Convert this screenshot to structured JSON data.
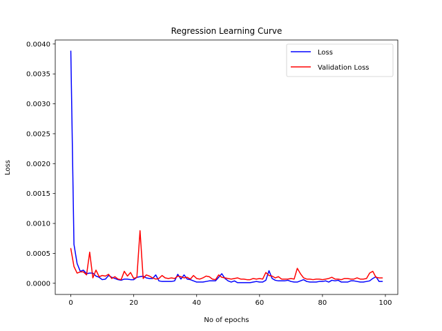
{
  "chart_data": {
    "type": "line",
    "title": "Regression Learning Curve",
    "xlabel": "No of epochs",
    "ylabel": "Loss",
    "xlim": [
      -4.95,
      103.95
    ],
    "ylim": [
      -0.000187,
      0.004067
    ],
    "xticks": [
      0,
      20,
      40,
      60,
      80,
      100
    ],
    "xtick_labels": [
      "0",
      "20",
      "40",
      "60",
      "80",
      "100"
    ],
    "yticks": [
      0.0,
      0.0005,
      0.001,
      0.0015,
      0.002,
      0.0025,
      0.003,
      0.0035,
      0.004
    ],
    "ytick_labels": [
      "0.0000",
      "0.0005",
      "0.0010",
      "0.0015",
      "0.0020",
      "0.0025",
      "0.0030",
      "0.0035",
      "0.0040"
    ],
    "grid": false,
    "legend_position": "top-right",
    "x": [
      0,
      1,
      2,
      3,
      4,
      5,
      6,
      7,
      8,
      9,
      10,
      11,
      12,
      13,
      14,
      15,
      16,
      17,
      18,
      19,
      20,
      21,
      22,
      23,
      24,
      25,
      26,
      27,
      28,
      29,
      30,
      31,
      32,
      33,
      34,
      35,
      36,
      37,
      38,
      39,
      40,
      41,
      42,
      43,
      44,
      45,
      46,
      47,
      48,
      49,
      50,
      51,
      52,
      53,
      54,
      55,
      56,
      57,
      58,
      59,
      60,
      61,
      62,
      63,
      64,
      65,
      66,
      67,
      68,
      69,
      70,
      71,
      72,
      73,
      74,
      75,
      76,
      77,
      78,
      79,
      80,
      81,
      82,
      83,
      84,
      85,
      86,
      87,
      88,
      89,
      90,
      91,
      92,
      93,
      94,
      95,
      96,
      97,
      98,
      99
    ],
    "series": [
      {
        "name": "Loss",
        "color": "#0000ff",
        "values": [
          0.00388,
          0.00065,
          0.00033,
          0.0002,
          0.00022,
          0.00016,
          0.00017,
          0.00017,
          0.00012,
          0.0001,
          6e-05,
          7e-05,
          0.00013,
          0.0001,
          8e-05,
          6e-05,
          5e-05,
          7e-05,
          7e-05,
          6e-05,
          6e-05,
          0.0001,
          0.00011,
          0.00012,
          9e-05,
          8e-05,
          8e-05,
          0.00014,
          4e-05,
          3e-05,
          3e-05,
          3e-05,
          3e-05,
          4e-05,
          0.00015,
          7e-05,
          0.00014,
          7e-05,
          6e-05,
          4e-05,
          2e-05,
          2e-05,
          2e-05,
          3e-05,
          4e-05,
          4e-05,
          4e-05,
          0.0001,
          0.00016,
          8e-05,
          4e-05,
          2e-05,
          4e-05,
          1e-05,
          1e-05,
          1e-05,
          1e-05,
          1e-05,
          2e-05,
          3e-05,
          2e-05,
          2e-05,
          5e-05,
          0.00021,
          8e-05,
          5e-05,
          4e-05,
          4e-05,
          4e-05,
          5e-05,
          3e-05,
          2e-05,
          2e-05,
          4e-05,
          6e-05,
          3e-05,
          2e-05,
          2e-05,
          2e-05,
          3e-05,
          3e-05,
          4e-05,
          2e-05,
          5e-05,
          4e-05,
          5e-05,
          2e-05,
          2e-05,
          2e-05,
          4e-05,
          4e-05,
          3e-05,
          2e-05,
          2e-05,
          3e-05,
          4e-05,
          8e-05,
          0.00011,
          3e-05,
          3e-05
        ]
      },
      {
        "name": "Validation Loss",
        "color": "#ff0000",
        "values": [
          0.00058,
          0.00028,
          0.00017,
          0.00019,
          0.00019,
          0.00014,
          0.00052,
          9e-05,
          0.00022,
          0.00011,
          0.00013,
          0.00012,
          0.00015,
          8e-05,
          0.00011,
          7e-05,
          6e-05,
          0.0002,
          0.00012,
          0.00018,
          8e-05,
          0.0001,
          0.00088,
          8e-05,
          0.00014,
          0.00012,
          9e-05,
          7e-05,
          8e-05,
          0.00013,
          9e-05,
          8e-05,
          9e-05,
          8e-05,
          0.00012,
          0.00011,
          9e-05,
          0.0001,
          7e-05,
          0.00013,
          8e-05,
          7e-05,
          9e-05,
          0.00012,
          0.00011,
          7e-05,
          6e-05,
          0.00014,
          0.0001,
          9e-05,
          8e-05,
          7e-05,
          8e-05,
          9e-05,
          7e-05,
          7e-05,
          6e-05,
          6e-05,
          8e-05,
          7e-05,
          8e-05,
          7e-05,
          0.00018,
          0.00013,
          0.00012,
          9e-05,
          0.00011,
          7e-05,
          7e-05,
          7e-05,
          8e-05,
          7e-05,
          0.00025,
          0.00016,
          9e-05,
          7e-05,
          7e-05,
          6e-05,
          7e-05,
          7e-05,
          6e-05,
          7e-05,
          8e-05,
          0.0001,
          7e-05,
          7e-05,
          6e-05,
          8e-05,
          8e-05,
          7e-05,
          7e-05,
          9e-05,
          7e-05,
          7e-05,
          8e-05,
          0.00017,
          0.0002,
          0.0001,
          9e-05,
          9e-05
        ]
      }
    ]
  }
}
